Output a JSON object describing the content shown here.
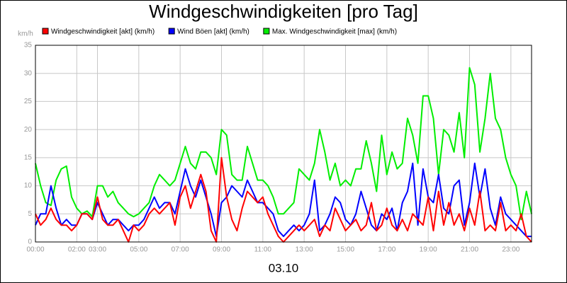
{
  "chart_data": {
    "type": "line",
    "title": "Windgeschwindigkeiten [pro Tag]",
    "ylabel": "km/h",
    "xlabel": "03.10",
    "x": [
      0,
      0.25,
      0.5,
      0.75,
      1,
      1.25,
      1.5,
      1.75,
      2,
      2.25,
      2.5,
      2.75,
      3,
      3.25,
      3.5,
      3.75,
      4,
      4.25,
      4.5,
      4.75,
      5,
      5.25,
      5.5,
      5.75,
      6,
      6.25,
      6.5,
      6.75,
      7,
      7.25,
      7.5,
      7.75,
      8,
      8.25,
      8.5,
      8.75,
      9,
      9.25,
      9.5,
      9.75,
      10,
      10.25,
      10.5,
      10.75,
      11,
      11.25,
      11.5,
      11.75,
      12,
      12.25,
      12.5,
      12.75,
      13,
      13.25,
      13.5,
      13.75,
      14,
      14.25,
      14.5,
      14.75,
      15,
      15.25,
      15.5,
      15.75,
      16,
      16.25,
      16.5,
      16.75,
      17,
      17.25,
      17.5,
      17.75,
      18,
      18.25,
      18.5,
      18.75,
      19,
      19.25,
      19.5,
      19.75,
      20,
      20.25,
      20.5,
      20.75,
      21,
      21.25,
      21.5,
      21.75,
      22,
      22.25,
      22.5,
      22.75,
      23,
      23.25,
      23.5,
      23.75,
      24
    ],
    "series": [
      {
        "name": "Windgeschwindigkeit [akt] (km/h)",
        "color": "#ff0000",
        "values": [
          5,
          3,
          4,
          6,
          4,
          3,
          3,
          2,
          3,
          5,
          5,
          4,
          8,
          4,
          3,
          3,
          4,
          2,
          0,
          3,
          2,
          3,
          5,
          6,
          5,
          6,
          7,
          3,
          8,
          10,
          6,
          9,
          12,
          9,
          2,
          0,
          15,
          8,
          4,
          2,
          6,
          9,
          8,
          7,
          8,
          5,
          3,
          1,
          0,
          1,
          2,
          3,
          2,
          3,
          4,
          1,
          3,
          2,
          6,
          4,
          2,
          3,
          4,
          2,
          3,
          7,
          2,
          3,
          6,
          3,
          2,
          4,
          2,
          5,
          4,
          3,
          8,
          2,
          9,
          3,
          7,
          3,
          5,
          2,
          6,
          3,
          9,
          2,
          3,
          2,
          7,
          2,
          3,
          2,
          5,
          1,
          0
        ]
      },
      {
        "name": "Wind Böen [akt] (km/h)",
        "color": "#0000ff",
        "values": [
          3,
          5,
          5,
          10,
          6,
          3,
          4,
          3,
          3,
          5,
          5,
          4,
          7,
          5,
          3,
          4,
          4,
          3,
          2,
          3,
          3,
          4,
          6,
          8,
          6,
          7,
          7,
          5,
          9,
          13,
          10,
          8,
          11,
          8,
          5,
          1,
          7,
          8,
          10,
          9,
          8,
          11,
          9,
          7,
          7,
          6,
          5,
          2,
          1,
          2,
          3,
          2,
          3,
          5,
          11,
          2,
          3,
          5,
          8,
          7,
          4,
          3,
          5,
          9,
          6,
          3,
          2,
          5,
          4,
          6,
          2,
          7,
          9,
          14,
          3,
          13,
          8,
          7,
          12,
          6,
          5,
          10,
          11,
          3,
          7,
          14,
          8,
          13,
          6,
          3,
          8,
          5,
          4,
          3,
          2,
          1,
          1
        ]
      },
      {
        "name": "Max. Windgeschwindigkeit [max] (km/h)",
        "color": "#00ee00",
        "values": [
          14,
          10,
          7,
          6.5,
          11,
          13,
          13.5,
          8,
          6,
          5,
          5.5,
          4.5,
          10,
          10,
          8,
          9,
          7,
          6,
          5,
          4.5,
          5,
          6,
          7,
          10,
          12,
          11,
          10,
          11,
          14,
          17,
          14,
          13,
          16,
          16,
          15,
          12,
          20,
          19,
          12,
          11,
          11,
          17,
          14,
          11,
          11,
          10,
          8,
          5,
          5,
          6,
          7,
          13,
          12,
          11,
          14,
          20,
          16,
          11,
          14,
          10,
          11,
          10,
          13,
          13,
          18,
          14,
          9,
          19,
          12,
          16,
          13,
          14,
          22,
          19,
          14,
          26,
          26,
          22,
          12,
          20,
          19,
          16,
          23,
          15,
          31,
          28,
          16,
          22,
          30,
          22,
          20,
          15,
          12,
          10,
          4,
          9,
          5
        ]
      }
    ],
    "xlim": [
      0,
      24
    ],
    "xticks": [
      {
        "value": 0,
        "label": "00:00"
      },
      {
        "value": 2,
        "label": "02:00"
      },
      {
        "value": 3,
        "label": "03:00"
      },
      {
        "value": 5,
        "label": "05:00"
      },
      {
        "value": 7,
        "label": "07:00"
      },
      {
        "value": 9,
        "label": "09:00"
      },
      {
        "value": 11,
        "label": "11:00"
      },
      {
        "value": 13,
        "label": "13:00"
      },
      {
        "value": 15,
        "label": "15:00"
      },
      {
        "value": 17,
        "label": "17:00"
      },
      {
        "value": 19,
        "label": "19:00"
      },
      {
        "value": 21,
        "label": "21:00"
      },
      {
        "value": 23,
        "label": "23:00"
      }
    ],
    "ylim": [
      0,
      35
    ],
    "yticks": [
      0,
      5,
      10,
      15,
      20,
      25,
      30,
      35
    ],
    "grid": true
  }
}
